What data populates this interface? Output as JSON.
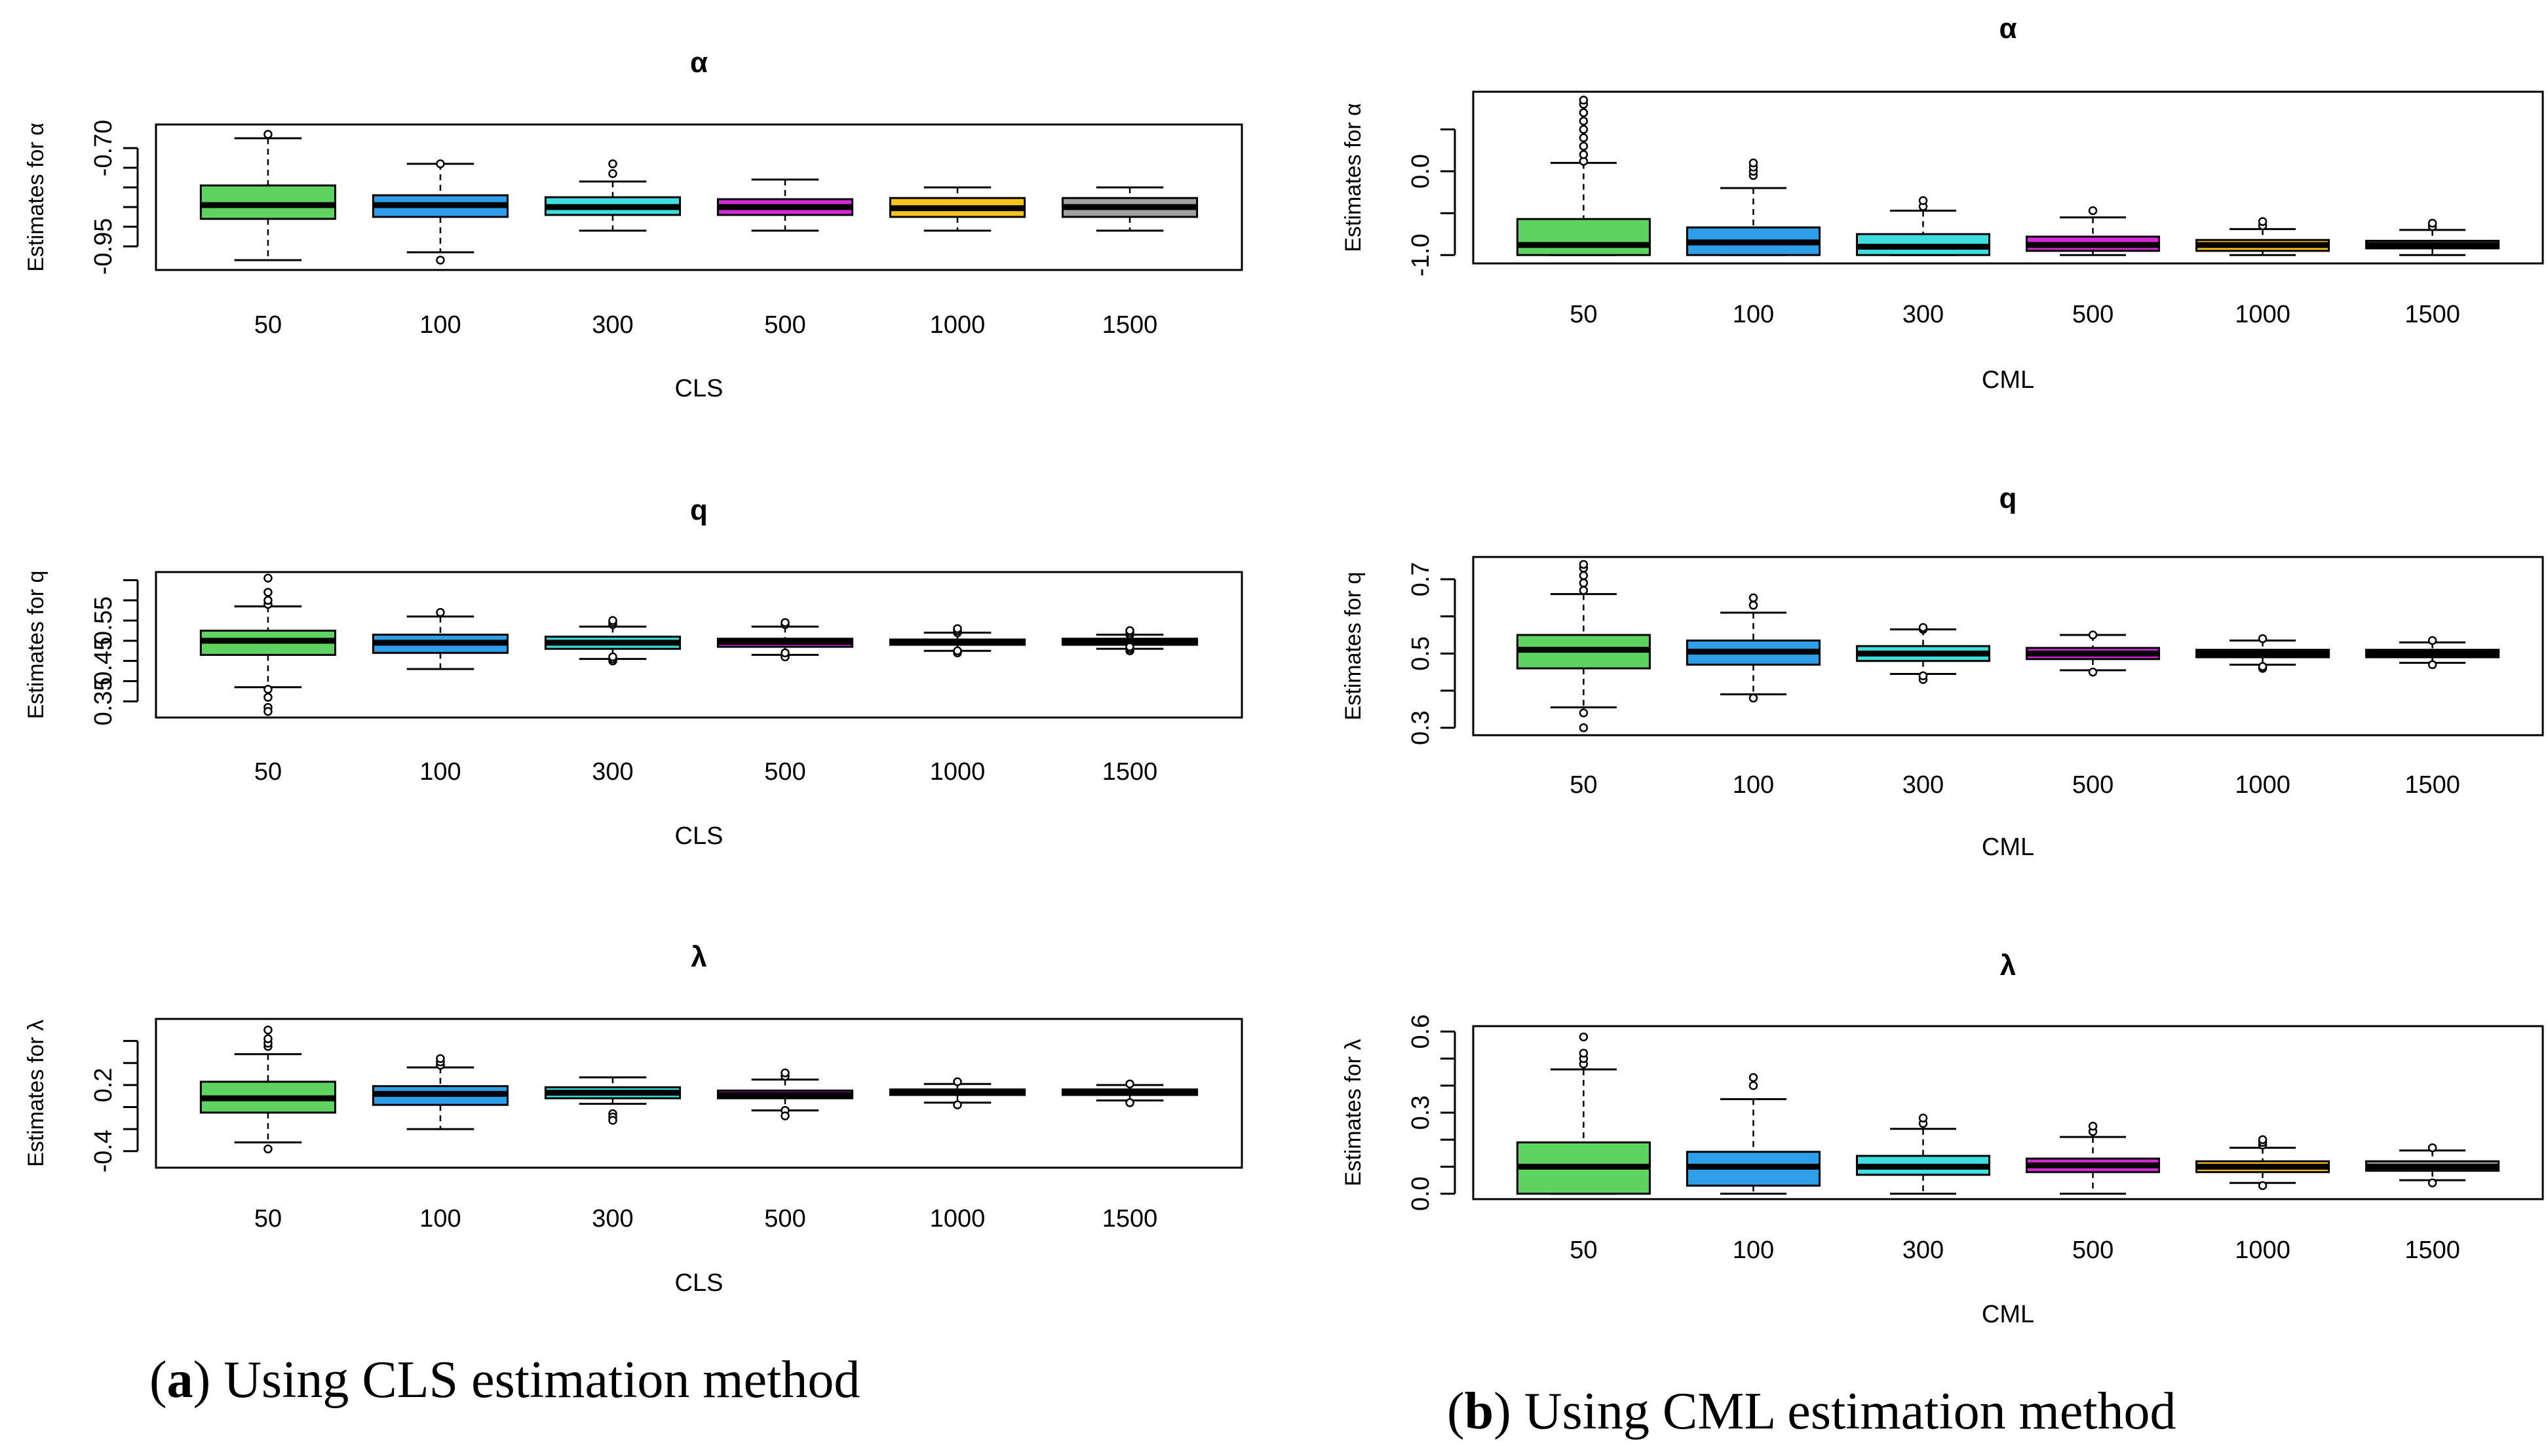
{
  "captions": [
    {
      "letter": "a",
      "text": " Using CLS estimation method"
    },
    {
      "letter": "b",
      "text": " Using CML estimation method"
    }
  ],
  "chart_data": [
    {
      "type": "box",
      "title": "α",
      "xlabel": "CLS",
      "ylabel": "Estimates for α",
      "categories": [
        "50",
        "100",
        "300",
        "500",
        "1000",
        "1500"
      ],
      "colors": [
        "#5fd35f",
        "#2f9ee8",
        "#3fdede",
        "#d42ad4",
        "#f6c319",
        "#a0a0a0"
      ],
      "ylim": [
        -1.01,
        -0.64
      ],
      "yticks": [
        {
          "v": -0.7,
          "label": "-0.70"
        },
        {
          "v": -0.95,
          "label": "-0.95"
        }
      ],
      "ytick_marks": [
        -0.7,
        -0.75,
        -0.8,
        -0.85,
        -0.9,
        -0.95
      ],
      "boxes": [
        {
          "low": -0.985,
          "q1": -0.88,
          "med": -0.845,
          "q3": -0.795,
          "high": -0.675,
          "outliers": [
            -0.665
          ]
        },
        {
          "low": -0.965,
          "q1": -0.875,
          "med": -0.845,
          "q3": -0.82,
          "high": -0.74,
          "outliers": [
            -0.74,
            -0.985
          ]
        },
        {
          "low": -0.91,
          "q1": -0.87,
          "med": -0.85,
          "q3": -0.825,
          "high": -0.785,
          "outliers": [
            -0.765,
            -0.74
          ]
        },
        {
          "low": -0.91,
          "q1": -0.87,
          "med": -0.85,
          "q3": -0.83,
          "high": -0.78,
          "outliers": []
        },
        {
          "low": -0.91,
          "q1": -0.875,
          "med": -0.853,
          "q3": -0.827,
          "high": -0.8,
          "outliers": []
        },
        {
          "low": -0.91,
          "q1": -0.875,
          "med": -0.85,
          "q3": -0.827,
          "high": -0.8,
          "outliers": []
        }
      ]
    },
    {
      "type": "box",
      "title": "q",
      "xlabel": "CLS",
      "ylabel": "Estimates for q",
      "categories": [
        "50",
        "100",
        "300",
        "500",
        "1000",
        "1500"
      ],
      "colors": [
        "#5fd35f",
        "#2f9ee8",
        "#3fdede",
        "#d42ad4",
        "#f6c319",
        "#a0a0a0"
      ],
      "ylim": [
        0.31,
        0.67
      ],
      "yticks": [
        {
          "v": 0.35,
          "label": "0.35"
        },
        {
          "v": 0.45,
          "label": "0.45"
        },
        {
          "v": 0.55,
          "label": "0.55"
        }
      ],
      "ytick_marks": [
        0.35,
        0.4,
        0.45,
        0.5,
        0.55,
        0.6,
        0.65
      ],
      "boxes": [
        {
          "low": 0.385,
          "q1": 0.465,
          "med": 0.5,
          "q3": 0.525,
          "high": 0.585,
          "outliers": [
            0.38,
            0.36,
            0.335,
            0.325,
            0.59,
            0.6,
            0.62,
            0.655
          ]
        },
        {
          "low": 0.43,
          "q1": 0.47,
          "med": 0.495,
          "q3": 0.515,
          "high": 0.56,
          "outliers": [
            0.57
          ]
        },
        {
          "low": 0.455,
          "q1": 0.48,
          "med": 0.495,
          "q3": 0.51,
          "high": 0.535,
          "outliers": [
            0.45,
            0.455,
            0.46,
            0.54,
            0.545,
            0.55
          ]
        },
        {
          "low": 0.465,
          "q1": 0.485,
          "med": 0.497,
          "q3": 0.505,
          "high": 0.535,
          "outliers": [
            0.46,
            0.47,
            0.54,
            0.545
          ]
        },
        {
          "low": 0.475,
          "q1": 0.49,
          "med": 0.497,
          "q3": 0.503,
          "high": 0.52,
          "outliers": [
            0.47,
            0.475,
            0.52,
            0.525,
            0.53
          ]
        },
        {
          "low": 0.48,
          "q1": 0.49,
          "med": 0.497,
          "q3": 0.505,
          "high": 0.515,
          "outliers": [
            0.475,
            0.48,
            0.485,
            0.515,
            0.52,
            0.525
          ]
        }
      ]
    },
    {
      "type": "box",
      "title": "λ",
      "xlabel": "CLS",
      "ylabel": "Estimates for λ",
      "categories": [
        "50",
        "100",
        "300",
        "500",
        "1000",
        "1500"
      ],
      "colors": [
        "#5fd35f",
        "#2f9ee8",
        "#3fdede",
        "#d42ad4",
        "#f6c319",
        "#a0a0a0"
      ],
      "ylim": [
        -0.55,
        0.8
      ],
      "yticks": [
        {
          "v": -0.4,
          "label": "-0.4"
        },
        {
          "v": 0.2,
          "label": "0.2"
        }
      ],
      "ytick_marks": [
        -0.4,
        -0.2,
        0.0,
        0.2,
        0.4,
        0.6
      ],
      "boxes": [
        {
          "low": -0.32,
          "q1": -0.05,
          "med": 0.08,
          "q3": 0.23,
          "high": 0.48,
          "outliers": [
            -0.38,
            0.55,
            0.58,
            0.62,
            0.7
          ]
        },
        {
          "low": -0.2,
          "q1": 0.02,
          "med": 0.12,
          "q3": 0.19,
          "high": 0.36,
          "outliers": [
            0.38,
            0.41,
            0.44
          ]
        },
        {
          "low": 0.03,
          "q1": 0.08,
          "med": 0.13,
          "q3": 0.18,
          "high": 0.27,
          "outliers": [
            -0.06,
            -0.09,
            -0.12
          ]
        },
        {
          "low": -0.03,
          "q1": 0.08,
          "med": 0.11,
          "q3": 0.15,
          "high": 0.25,
          "outliers": [
            -0.03,
            -0.08,
            0.28,
            0.31
          ]
        },
        {
          "low": 0.04,
          "q1": 0.11,
          "med": 0.13,
          "q3": 0.16,
          "high": 0.21,
          "outliers": [
            0.02,
            0.23
          ]
        },
        {
          "low": 0.06,
          "q1": 0.11,
          "med": 0.13,
          "q3": 0.16,
          "high": 0.2,
          "outliers": [
            0.04,
            0.21
          ]
        }
      ]
    },
    {
      "type": "box",
      "title": "α",
      "xlabel": "CML",
      "ylabel": "Estimates for α",
      "categories": [
        "50",
        "100",
        "300",
        "500",
        "1000",
        "1500"
      ],
      "colors": [
        "#5fd35f",
        "#2f9ee8",
        "#3fdede",
        "#d42ad4",
        "#f6c319",
        "#a0a0a0"
      ],
      "ylim": [
        -1.1,
        0.95
      ],
      "yticks": [
        {
          "v": -1.0,
          "label": "-1.0"
        },
        {
          "v": 0.0,
          "label": "0.0"
        }
      ],
      "ytick_marks": [
        -1.0,
        -0.5,
        0.0,
        0.5
      ],
      "boxes": [
        {
          "low": -1.0,
          "q1": -1.0,
          "med": -0.88,
          "q3": -0.57,
          "high": 0.1,
          "outliers": [
            0.12,
            0.2,
            0.3,
            0.4,
            0.5,
            0.6,
            0.7,
            0.8,
            0.85
          ]
        },
        {
          "low": -1.0,
          "q1": -1.0,
          "med": -0.85,
          "q3": -0.67,
          "high": -0.2,
          "outliers": [
            -0.05,
            0.0,
            0.05,
            0.1
          ]
        },
        {
          "low": -1.0,
          "q1": -1.0,
          "med": -0.9,
          "q3": -0.75,
          "high": -0.47,
          "outliers": [
            -0.42,
            -0.35
          ]
        },
        {
          "low": -1.0,
          "q1": -0.95,
          "med": -0.88,
          "q3": -0.78,
          "high": -0.55,
          "outliers": [
            -0.47
          ]
        },
        {
          "low": -1.0,
          "q1": -0.95,
          "med": -0.88,
          "q3": -0.82,
          "high": -0.69,
          "outliers": [
            -0.65,
            -0.6
          ]
        },
        {
          "low": -1.0,
          "q1": -0.92,
          "med": -0.88,
          "q3": -0.83,
          "high": -0.7,
          "outliers": [
            -0.66,
            -0.62
          ]
        }
      ]
    },
    {
      "type": "box",
      "title": "q",
      "xlabel": "CML",
      "ylabel": "Estimates for q",
      "categories": [
        "50",
        "100",
        "300",
        "500",
        "1000",
        "1500"
      ],
      "colors": [
        "#5fd35f",
        "#2f9ee8",
        "#3fdede",
        "#d42ad4",
        "#f6c319",
        "#a0a0a0"
      ],
      "ylim": [
        0.28,
        0.76
      ],
      "yticks": [
        {
          "v": 0.3,
          "label": "0.3"
        },
        {
          "v": 0.5,
          "label": "0.5"
        },
        {
          "v": 0.7,
          "label": "0.7"
        }
      ],
      "ytick_marks": [
        0.3,
        0.4,
        0.5,
        0.6,
        0.7
      ],
      "boxes": [
        {
          "low": 0.355,
          "q1": 0.46,
          "med": 0.51,
          "q3": 0.55,
          "high": 0.66,
          "outliers": [
            0.3,
            0.34,
            0.67,
            0.69,
            0.71,
            0.73,
            0.74
          ]
        },
        {
          "low": 0.39,
          "q1": 0.47,
          "med": 0.505,
          "q3": 0.535,
          "high": 0.61,
          "outliers": [
            0.38,
            0.63,
            0.65
          ]
        },
        {
          "low": 0.445,
          "q1": 0.48,
          "med": 0.5,
          "q3": 0.52,
          "high": 0.565,
          "outliers": [
            0.43,
            0.44,
            0.565,
            0.57
          ]
        },
        {
          "low": 0.455,
          "q1": 0.485,
          "med": 0.5,
          "q3": 0.515,
          "high": 0.55,
          "outliers": [
            0.45,
            0.55
          ]
        },
        {
          "low": 0.47,
          "q1": 0.49,
          "med": 0.5,
          "q3": 0.51,
          "high": 0.535,
          "outliers": [
            0.46,
            0.465,
            0.54
          ]
        },
        {
          "low": 0.475,
          "q1": 0.49,
          "med": 0.5,
          "q3": 0.51,
          "high": 0.53,
          "outliers": [
            0.47,
            0.535
          ]
        }
      ]
    },
    {
      "type": "box",
      "title": "λ",
      "xlabel": "CML",
      "ylabel": "Estimates for λ",
      "categories": [
        "50",
        "100",
        "300",
        "500",
        "1000",
        "1500"
      ],
      "colors": [
        "#5fd35f",
        "#2f9ee8",
        "#3fdede",
        "#d42ad4",
        "#f6c319",
        "#a0a0a0"
      ],
      "ylim": [
        -0.02,
        0.62
      ],
      "yticks": [
        {
          "v": 0.0,
          "label": "0.0"
        },
        {
          "v": 0.3,
          "label": "0.3"
        },
        {
          "v": 0.6,
          "label": "0.6"
        }
      ],
      "ytick_marks": [
        0.0,
        0.1,
        0.2,
        0.3,
        0.4,
        0.5,
        0.6
      ],
      "boxes": [
        {
          "low": 0.0,
          "q1": 0.0,
          "med": 0.1,
          "q3": 0.19,
          "high": 0.46,
          "outliers": [
            0.48,
            0.5,
            0.52,
            0.58
          ]
        },
        {
          "low": 0.0,
          "q1": 0.03,
          "med": 0.1,
          "q3": 0.155,
          "high": 0.35,
          "outliers": [
            0.4,
            0.43
          ]
        },
        {
          "low": 0.0,
          "q1": 0.07,
          "med": 0.1,
          "q3": 0.14,
          "high": 0.24,
          "outliers": [
            0.26,
            0.28
          ]
        },
        {
          "low": 0.0,
          "q1": 0.08,
          "med": 0.105,
          "q3": 0.13,
          "high": 0.21,
          "outliers": [
            0.23,
            0.25
          ]
        },
        {
          "low": 0.04,
          "q1": 0.08,
          "med": 0.1,
          "q3": 0.12,
          "high": 0.17,
          "outliers": [
            0.03,
            0.18,
            0.19,
            0.2
          ]
        },
        {
          "low": 0.05,
          "q1": 0.085,
          "med": 0.1,
          "q3": 0.12,
          "high": 0.16,
          "outliers": [
            0.04,
            0.17
          ]
        }
      ]
    }
  ]
}
